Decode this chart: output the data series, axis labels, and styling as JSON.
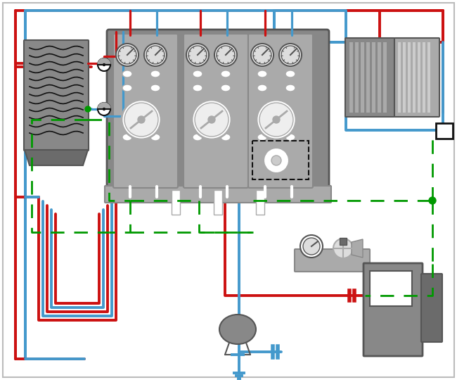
{
  "bg": "#ffffff",
  "red": "#cc1111",
  "blue": "#4499cc",
  "green": "#009900",
  "gray1": "#6b6b6b",
  "gray2": "#888888",
  "gray3": "#aaaaaa",
  "gray4": "#cccccc",
  "gray5": "#555555",
  "white": "#ffffff",
  "black": "#111111"
}
